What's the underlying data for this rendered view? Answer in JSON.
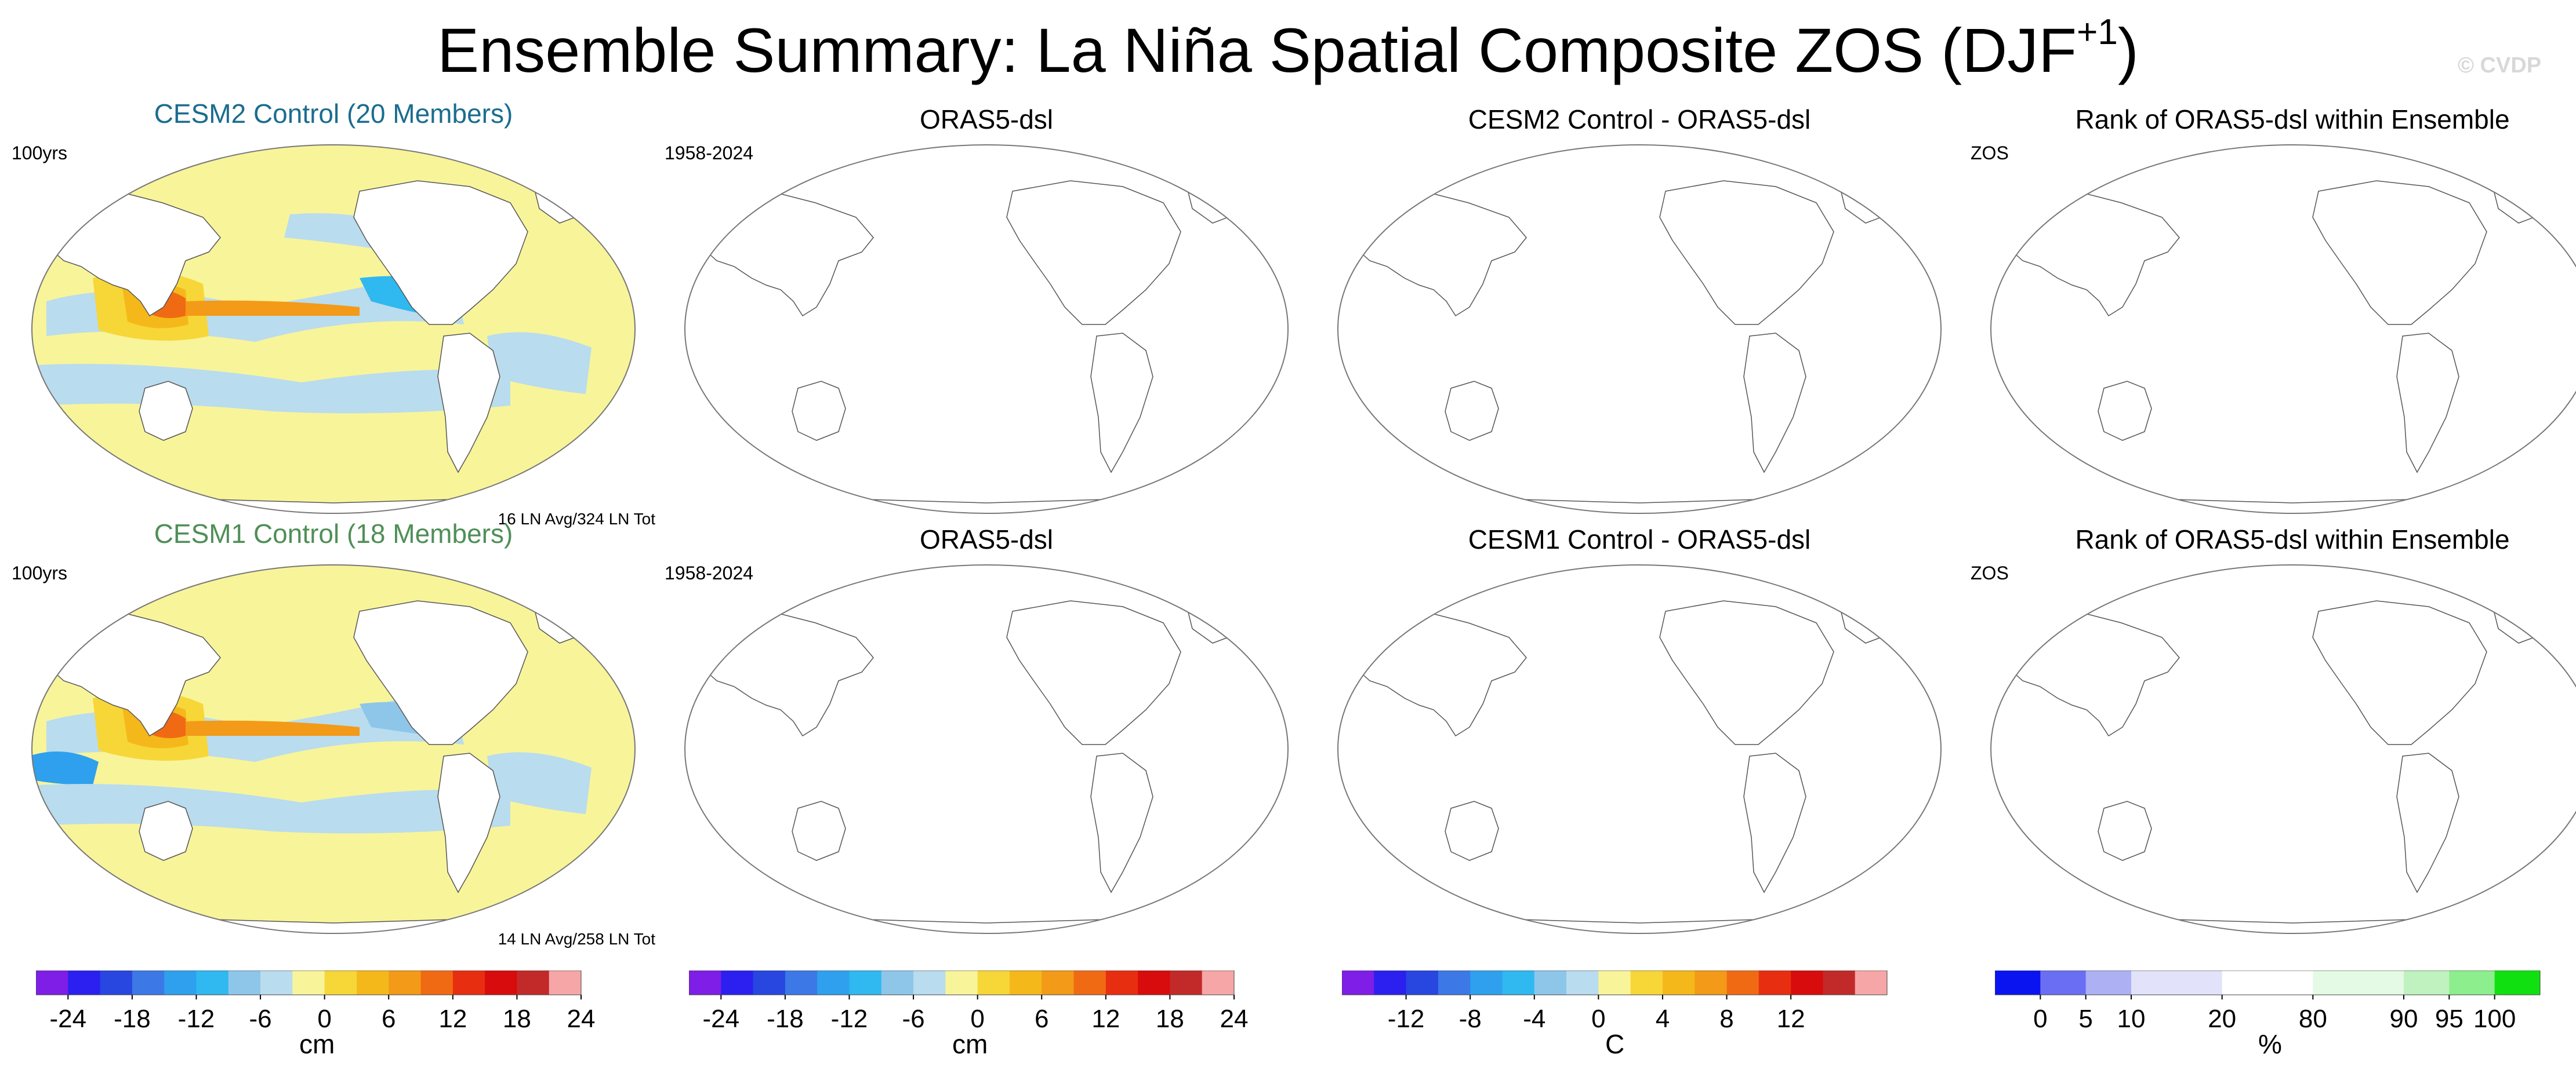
{
  "title": "Ensemble Summary: La Niña Spatial Composite ZOS (DJF",
  "title_sup": "+1",
  "title_close": ")",
  "watermark": "© CVDP",
  "rows": [
    {
      "panels": [
        {
          "title": "CESM2 Control (20 Members)",
          "corner": "100yrs",
          "note": "16 LN Avg/324 LN Tot",
          "kind": "model",
          "title_color": "#1a6d8f"
        },
        {
          "title": "ORAS5-dsl",
          "corner": "1958-2024",
          "note": "",
          "kind": "empty"
        },
        {
          "title": "CESM2 Control - ORAS5-dsl",
          "corner": "",
          "note": "",
          "kind": "empty"
        },
        {
          "title": "Rank of ORAS5-dsl within Ensemble",
          "corner": "ZOS",
          "note": "",
          "kind": "empty"
        }
      ]
    },
    {
      "panels": [
        {
          "title": "CESM1 Control (18 Members)",
          "corner": "100yrs",
          "note": "14 LN Avg/258 LN Tot",
          "kind": "model",
          "title_color": "#4f8f57"
        },
        {
          "title": "ORAS5-dsl",
          "corner": "1958-2024",
          "note": "",
          "kind": "empty"
        },
        {
          "title": "CESM1 Control - ORAS5-dsl",
          "corner": "",
          "note": "",
          "kind": "empty"
        },
        {
          "title": "Rank of ORAS5-dsl within Ensemble",
          "corner": "ZOS",
          "note": "",
          "kind": "empty"
        }
      ]
    }
  ],
  "chart_data": {
    "type": "heatmap",
    "colorbars": [
      {
        "unit": "cm",
        "colors": [
          "#7e1ee6",
          "#2b20f0",
          "#2846e0",
          "#3c78e6",
          "#2ea0ee",
          "#30b8f0",
          "#8ec6ea",
          "#b9dcee",
          "#f8f49a",
          "#f7d638",
          "#f5b81a",
          "#f39a18",
          "#f06a14",
          "#e82e10",
          "#d80c0c",
          "#c22a2a",
          "#f6a6a6"
        ],
        "tick_labels": [
          "-24",
          "-18",
          "-12",
          "-6",
          "0",
          "6",
          "12",
          "18",
          "24"
        ],
        "tick_positions": [
          1,
          3,
          5,
          7,
          9,
          11,
          13,
          15,
          17
        ]
      },
      {
        "unit": "cm",
        "colors": [
          "#7e1ee6",
          "#2b20f0",
          "#2846e0",
          "#3c78e6",
          "#2ea0ee",
          "#30b8f0",
          "#8ec6ea",
          "#b9dcee",
          "#f8f49a",
          "#f7d638",
          "#f5b81a",
          "#f39a18",
          "#f06a14",
          "#e82e10",
          "#d80c0c",
          "#c22a2a",
          "#f6a6a6"
        ],
        "tick_labels": [
          "-24",
          "-18",
          "-12",
          "-6",
          "0",
          "6",
          "12",
          "18",
          "24"
        ],
        "tick_positions": [
          1,
          3,
          5,
          7,
          9,
          11,
          13,
          15,
          17
        ]
      },
      {
        "unit": "C",
        "colors": [
          "#7e1ee6",
          "#2b20f0",
          "#2846e0",
          "#3c78e6",
          "#2ea0ee",
          "#30b8f0",
          "#8ec6ea",
          "#b9dcee",
          "#f8f49a",
          "#f7d638",
          "#f5b81a",
          "#f39a18",
          "#f06a14",
          "#e82e10",
          "#d80c0c",
          "#c22a2a",
          "#f6a6a6"
        ],
        "tick_labels": [
          "-12",
          "-8",
          "-4",
          "0",
          "4",
          "8",
          "12"
        ],
        "tick_positions": [
          2,
          4,
          6,
          8,
          10,
          12,
          14
        ]
      },
      {
        "unit": "%",
        "colors": [
          "#0a14f0",
          "#6a6ef2",
          "#aeb0f4",
          "#e2e2fa",
          "#e2e2fa",
          "#ffffff",
          "#ffffff",
          "#e4fae4",
          "#e4fae4",
          "#bff2bf",
          "#8cee8c",
          "#10e010"
        ],
        "tick_labels": [
          "0",
          "5",
          "10",
          "20",
          "80",
          "90",
          "95",
          "100"
        ],
        "tick_positions": [
          1,
          2,
          3,
          5,
          7,
          9,
          10,
          11
        ]
      }
    ]
  }
}
